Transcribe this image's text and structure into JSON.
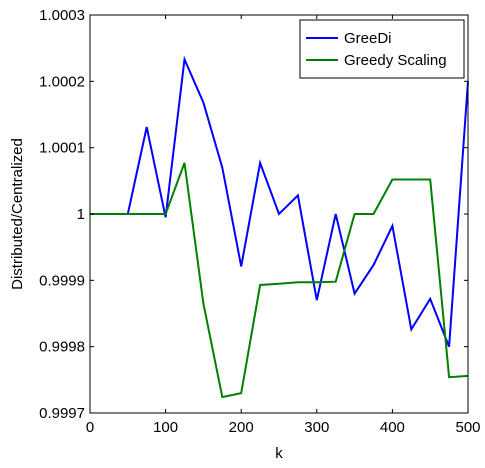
{
  "chart_data": {
    "type": "line",
    "xlabel": "k",
    "ylabel": "Distributed/Centralized",
    "xlim": [
      0,
      500
    ],
    "ylim": [
      0.9997,
      1.0003
    ],
    "xticks": [
      0,
      100,
      200,
      300,
      400,
      500
    ],
    "xtick_labels": [
      "0",
      "100",
      "200",
      "300",
      "400",
      "500"
    ],
    "yticks": [
      0.9997,
      0.9998,
      0.9999,
      1.0,
      1.0001,
      1.0002,
      1.0003
    ],
    "ytick_labels": [
      "0.9997",
      "0.9998",
      "0.9999",
      "1",
      "1.0001",
      "1.0002",
      "1.0003"
    ],
    "grid": false,
    "legend_position": "top-right",
    "series": [
      {
        "name": "GreeDi",
        "color": "#0000ff",
        "x": [
          0,
          25,
          50,
          75,
          100,
          125,
          150,
          175,
          200,
          225,
          250,
          275,
          300,
          325,
          350,
          375,
          400,
          425,
          450,
          475,
          500
        ],
        "y": [
          1.0,
          1.0,
          1.0,
          1.000131,
          0.999995,
          1.000233,
          1.000168,
          1.00007,
          0.999921,
          1.000077,
          1.0,
          1.000028,
          0.99987,
          1.0,
          0.99988,
          0.999923,
          0.999982,
          0.999826,
          0.999872,
          0.9998,
          1.0002
        ]
      },
      {
        "name": "Greedy Scaling",
        "color": "#008000",
        "x": [
          0,
          25,
          50,
          75,
          100,
          125,
          150,
          175,
          200,
          225,
          250,
          275,
          300,
          325,
          350,
          375,
          400,
          425,
          450,
          475,
          500
        ],
        "y": [
          1.0,
          1.0,
          1.0,
          1.0,
          1.0,
          1.000077,
          0.999865,
          0.999724,
          0.99973,
          0.999893,
          0.999895,
          0.999897,
          0.999897,
          0.999898,
          1.0,
          1.0,
          1.000052,
          1.000052,
          1.000052,
          0.999754,
          0.999756
        ]
      }
    ]
  }
}
